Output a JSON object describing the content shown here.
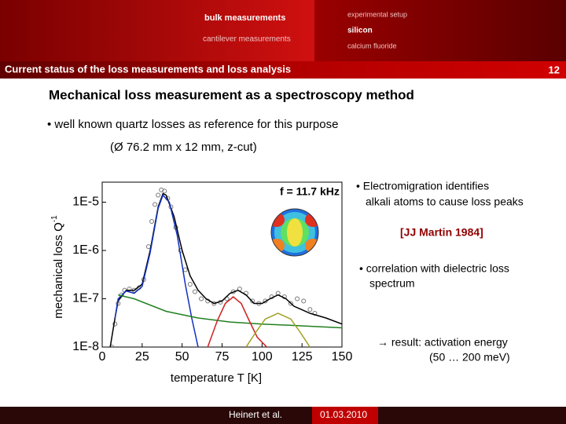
{
  "header": {
    "nav_left": [
      "bulk measurements",
      "cantilever measurements"
    ],
    "nav_right": [
      "experimental setup",
      "silicon",
      "calcium fluoride"
    ],
    "title": "Current status of the loss measurements and loss analysis",
    "page_number": "12"
  },
  "slide": {
    "heading": "Mechanical loss measurement as a spectroscopy method",
    "bullet": "• well known quartz losses as reference for this purpose",
    "sample": "(Ø 76.2 mm x 12 mm, z-cut)",
    "notes": [
      [
        "• Electromigration identifies",
        "alkali atoms to cause loss peaks"
      ],
      [
        "[JJ Martin 1984]"
      ],
      [
        "• correlation with dielectric loss",
        "spectrum"
      ],
      [
        "→ result: activation energy",
        "(50 … 200 meV)"
      ]
    ]
  },
  "chart_data": {
    "type": "line",
    "inset_label": "f = 11.7 kHz",
    "xlabel": "temperature T [K]",
    "ylabel": "mechanical loss Q",
    "ylabel_superscript": "-1",
    "log_y": true,
    "xlim": [
      0,
      150
    ],
    "ylim": [
      1e-08,
      2.6e-05
    ],
    "xticks": [
      0,
      25,
      50,
      75,
      100,
      125,
      150
    ],
    "yticks": [
      {
        "value": 1e-08,
        "label": "1E-8"
      },
      {
        "value": 1e-07,
        "label": "1E-7"
      },
      {
        "value": 1e-06,
        "label": "1E-6"
      },
      {
        "value": 1e-05,
        "label": "1E-5"
      }
    ],
    "series": [
      {
        "name": "measurement",
        "style": "markers",
        "color": "#777777",
        "x": [
          6,
          8,
          10,
          12,
          14,
          17,
          20,
          23,
          26,
          29,
          31,
          33,
          35,
          37,
          39,
          41,
          43,
          46,
          49,
          52,
          55,
          58,
          62,
          66,
          70,
          74,
          78,
          82,
          86,
          90,
          94,
          98,
          102,
          106,
          110,
          114,
          118,
          122,
          126,
          130,
          133
        ],
        "values": [
          1e-08,
          3e-08,
          8e-08,
          1.2e-07,
          1.5e-07,
          1.6e-07,
          1.5e-07,
          1.7e-07,
          2.5e-07,
          1.2e-06,
          4e-06,
          9e-06,
          1.4e-05,
          1.8e-05,
          1.7e-05,
          1.2e-05,
          8e-06,
          3e-06,
          1e-06,
          4e-07,
          2e-07,
          1.4e-07,
          1e-07,
          9e-08,
          8e-08,
          8.5e-08,
          1e-07,
          1.4e-07,
          1.6e-07,
          1.3e-07,
          9e-08,
          8e-08,
          9e-08,
          1.1e-07,
          1.3e-07,
          1.1e-07,
          8e-08,
          1e-07,
          9e-08,
          6e-08,
          5e-08
        ]
      },
      {
        "name": "fit",
        "style": "line",
        "color": "#000000",
        "x": [
          5,
          8,
          10,
          15,
          20,
          25,
          30,
          35,
          38,
          40,
          45,
          50,
          55,
          60,
          65,
          70,
          75,
          80,
          85,
          90,
          95,
          100,
          105,
          110,
          115,
          120,
          130,
          140,
          150
        ],
        "values": [
          1e-08,
          4e-08,
          9e-08,
          1.5e-07,
          1.5e-07,
          2e-07,
          1e-06,
          8e-06,
          1.5e-05,
          1.4e-05,
          5e-06,
          1e-06,
          3e-07,
          1.5e-07,
          1e-07,
          8e-08,
          9e-08,
          1.3e-07,
          1.5e-07,
          1.2e-07,
          8e-08,
          8e-08,
          1e-07,
          1.2e-07,
          1e-07,
          7e-08,
          5e-08,
          4e-08,
          3e-08
        ]
      },
      {
        "name": "peak 1",
        "style": "line",
        "color": "#1030c0",
        "x": [
          8,
          10,
          15,
          20,
          25,
          30,
          35,
          38,
          42,
          47,
          52,
          56,
          60
        ],
        "values": [
          4e-08,
          1e-07,
          1.45e-07,
          1.3e-07,
          1.8e-07,
          9e-07,
          7.5e-06,
          1.4e-05,
          1e-05,
          2e-06,
          2e-07,
          4e-08,
          1e-08
        ]
      },
      {
        "name": "background",
        "style": "line",
        "color": "#208020",
        "x": [
          10,
          20,
          40,
          60,
          80,
          100,
          120,
          150
        ],
        "values": [
          1.2e-07,
          1e-07,
          5.5e-08,
          4e-08,
          3.3e-08,
          3e-08,
          2.8e-08,
          2.5e-08
        ]
      },
      {
        "name": "peak 2",
        "style": "line",
        "color": "#d02020",
        "x": [
          66,
          72,
          77,
          82,
          87,
          92,
          97,
          103
        ],
        "values": [
          1e-08,
          3.5e-08,
          8e-08,
          1.1e-07,
          8e-08,
          3.5e-08,
          1.6e-08,
          1e-08
        ]
      },
      {
        "name": "peak 3",
        "style": "line",
        "color": "#a0a020",
        "x": [
          90,
          96,
          102,
          110,
          118,
          124,
          130
        ],
        "values": [
          1e-08,
          2e-08,
          3.8e-08,
          5e-08,
          3.8e-08,
          2e-08,
          1e-08
        ]
      }
    ]
  },
  "footer": {
    "author": "Heinert et al.",
    "date": "01.03.2010"
  }
}
